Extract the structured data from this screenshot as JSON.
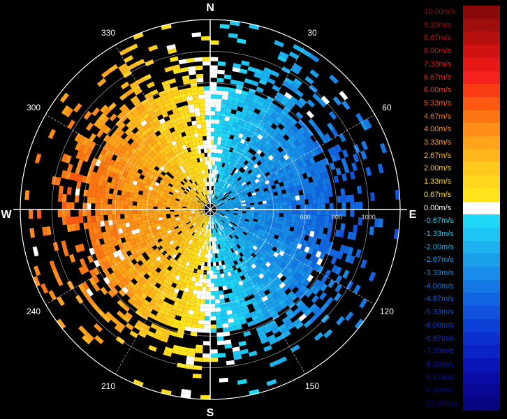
{
  "chart_data": {
    "type": "heatmap",
    "title": "",
    "description_label": "",
    "compass": {
      "north": "N",
      "south": "S",
      "east": "E",
      "west": "W"
    },
    "azimuth_labels": [
      {
        "angle": 30,
        "label": "30"
      },
      {
        "angle": 60,
        "label": "60"
      },
      {
        "angle": 120,
        "label": "120"
      },
      {
        "angle": 150,
        "label": "150"
      },
      {
        "angle": 210,
        "label": "210"
      },
      {
        "angle": 240,
        "label": "240"
      },
      {
        "angle": 300,
        "label": "300"
      },
      {
        "angle": 330,
        "label": "330"
      }
    ],
    "range_rings": [
      200,
      400,
      600,
      800,
      1000,
      1200
    ],
    "range_tick_labels": [
      {
        "range": 600,
        "label": "600"
      },
      {
        "range": 800,
        "label": "800"
      },
      {
        "range": 1000,
        "label": "1000"
      }
    ],
    "radial_velocity_pattern": {
      "toward_radar_sector_center_deg": 90,
      "away_from_radar_sector_center_deg": 250,
      "peak_speed_ms": 4.67,
      "max_range": 1200
    },
    "colorbar": {
      "unit": "m/s",
      "entries": [
        {
          "label": "10.00m/s",
          "value": 10.0,
          "color": "#8a0a0a"
        },
        {
          "label": "9.33m/s",
          "value": 9.33,
          "color": "#a00d0d"
        },
        {
          "label": "8.67m/s",
          "value": 8.67,
          "color": "#b80f0f"
        },
        {
          "label": "8.00m/s",
          "value": 8.0,
          "color": "#d01212"
        },
        {
          "label": "7.33m/s",
          "value": 7.33,
          "color": "#e61717"
        },
        {
          "label": "6.67m/s",
          "value": 6.67,
          "color": "#f52020"
        },
        {
          "label": "6.00m/s",
          "value": 6.0,
          "color": "#fa3c14"
        },
        {
          "label": "5.33m/s",
          "value": 5.33,
          "color": "#fc5a12"
        },
        {
          "label": "4.67m/s",
          "value": 4.67,
          "color": "#fd7614"
        },
        {
          "label": "4.00m/s",
          "value": 4.0,
          "color": "#fe8e17"
        },
        {
          "label": "3.33m/s",
          "value": 3.33,
          "color": "#ffa41a"
        },
        {
          "label": "2.67m/s",
          "value": 2.67,
          "color": "#ffb71c"
        },
        {
          "label": "2.00m/s",
          "value": 2.0,
          "color": "#ffc91e"
        },
        {
          "label": "1.33m/s",
          "value": 1.33,
          "color": "#ffd71f"
        },
        {
          "label": "0.67m/s",
          "value": 0.67,
          "color": "#ffe31c"
        },
        {
          "label": "0.00m/s",
          "value": 0.0,
          "color": "#ffffff"
        },
        {
          "label": "-0.67m/s",
          "value": -0.67,
          "color": "#1fd8f5"
        },
        {
          "label": "-1.33m/s",
          "value": -1.33,
          "color": "#1ec6f3"
        },
        {
          "label": "-2.00m/s",
          "value": -2.0,
          "color": "#1cb2ef"
        },
        {
          "label": "-2.67m/s",
          "value": -2.67,
          "color": "#1a9feb"
        },
        {
          "label": "-3.33m/s",
          "value": -3.33,
          "color": "#178ce8"
        },
        {
          "label": "-4.00m/s",
          "value": -4.0,
          "color": "#1478e4"
        },
        {
          "label": "-4.67m/s",
          "value": -4.67,
          "color": "#1265e0"
        },
        {
          "label": "-5.33m/s",
          "value": -5.33,
          "color": "#1052db"
        },
        {
          "label": "-6.00m/s",
          "value": -6.0,
          "color": "#0d40d6"
        },
        {
          "label": "-6.67m/s",
          "value": -6.67,
          "color": "#0b30cf"
        },
        {
          "label": "-7.33m/s",
          "value": -7.33,
          "color": "#0a22c6"
        },
        {
          "label": "-8.00m/s",
          "value": -8.0,
          "color": "#0a16b8"
        },
        {
          "label": "-8.67m/s",
          "value": -8.67,
          "color": "#0a0ea6"
        },
        {
          "label": "-9.33m/s",
          "value": -9.33,
          "color": "#080894"
        },
        {
          "label": "-10.00m/s",
          "value": -10.0,
          "color": "#060680"
        }
      ]
    }
  }
}
